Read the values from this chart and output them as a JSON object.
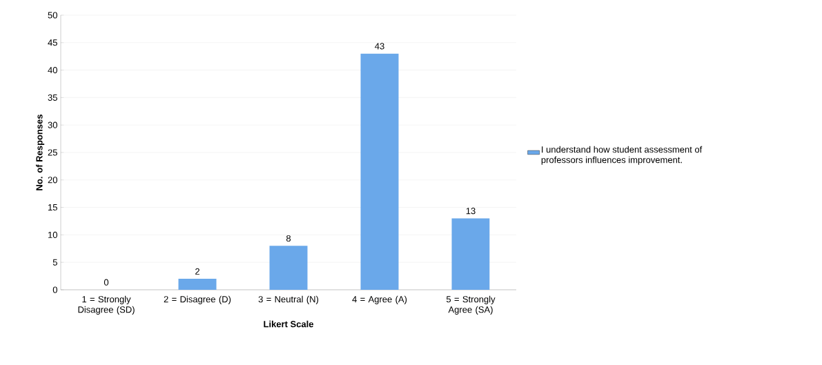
{
  "chart_data": {
    "type": "bar",
    "xlabel": "Likert Scale",
    "ylabel": "No. of Responses",
    "categories": [
      "1 = Strongly Disagree (SD)",
      "2 = Disagree (D)",
      "3 = Neutral (N)",
      "4 = Agree (A)",
      "5 = Strongly Agree (SA)"
    ],
    "series": [
      {
        "name": "I understand how student assessment of professors influences improvement.",
        "color": "#6aa8ea",
        "values": [
          0,
          2,
          8,
          43,
          13
        ]
      }
    ],
    "ylim": [
      0,
      50
    ],
    "yticks": [
      0,
      5,
      10,
      15,
      20,
      25,
      30,
      35,
      40,
      45,
      50
    ],
    "grid": "y",
    "legend": "right",
    "data_labels": true
  }
}
